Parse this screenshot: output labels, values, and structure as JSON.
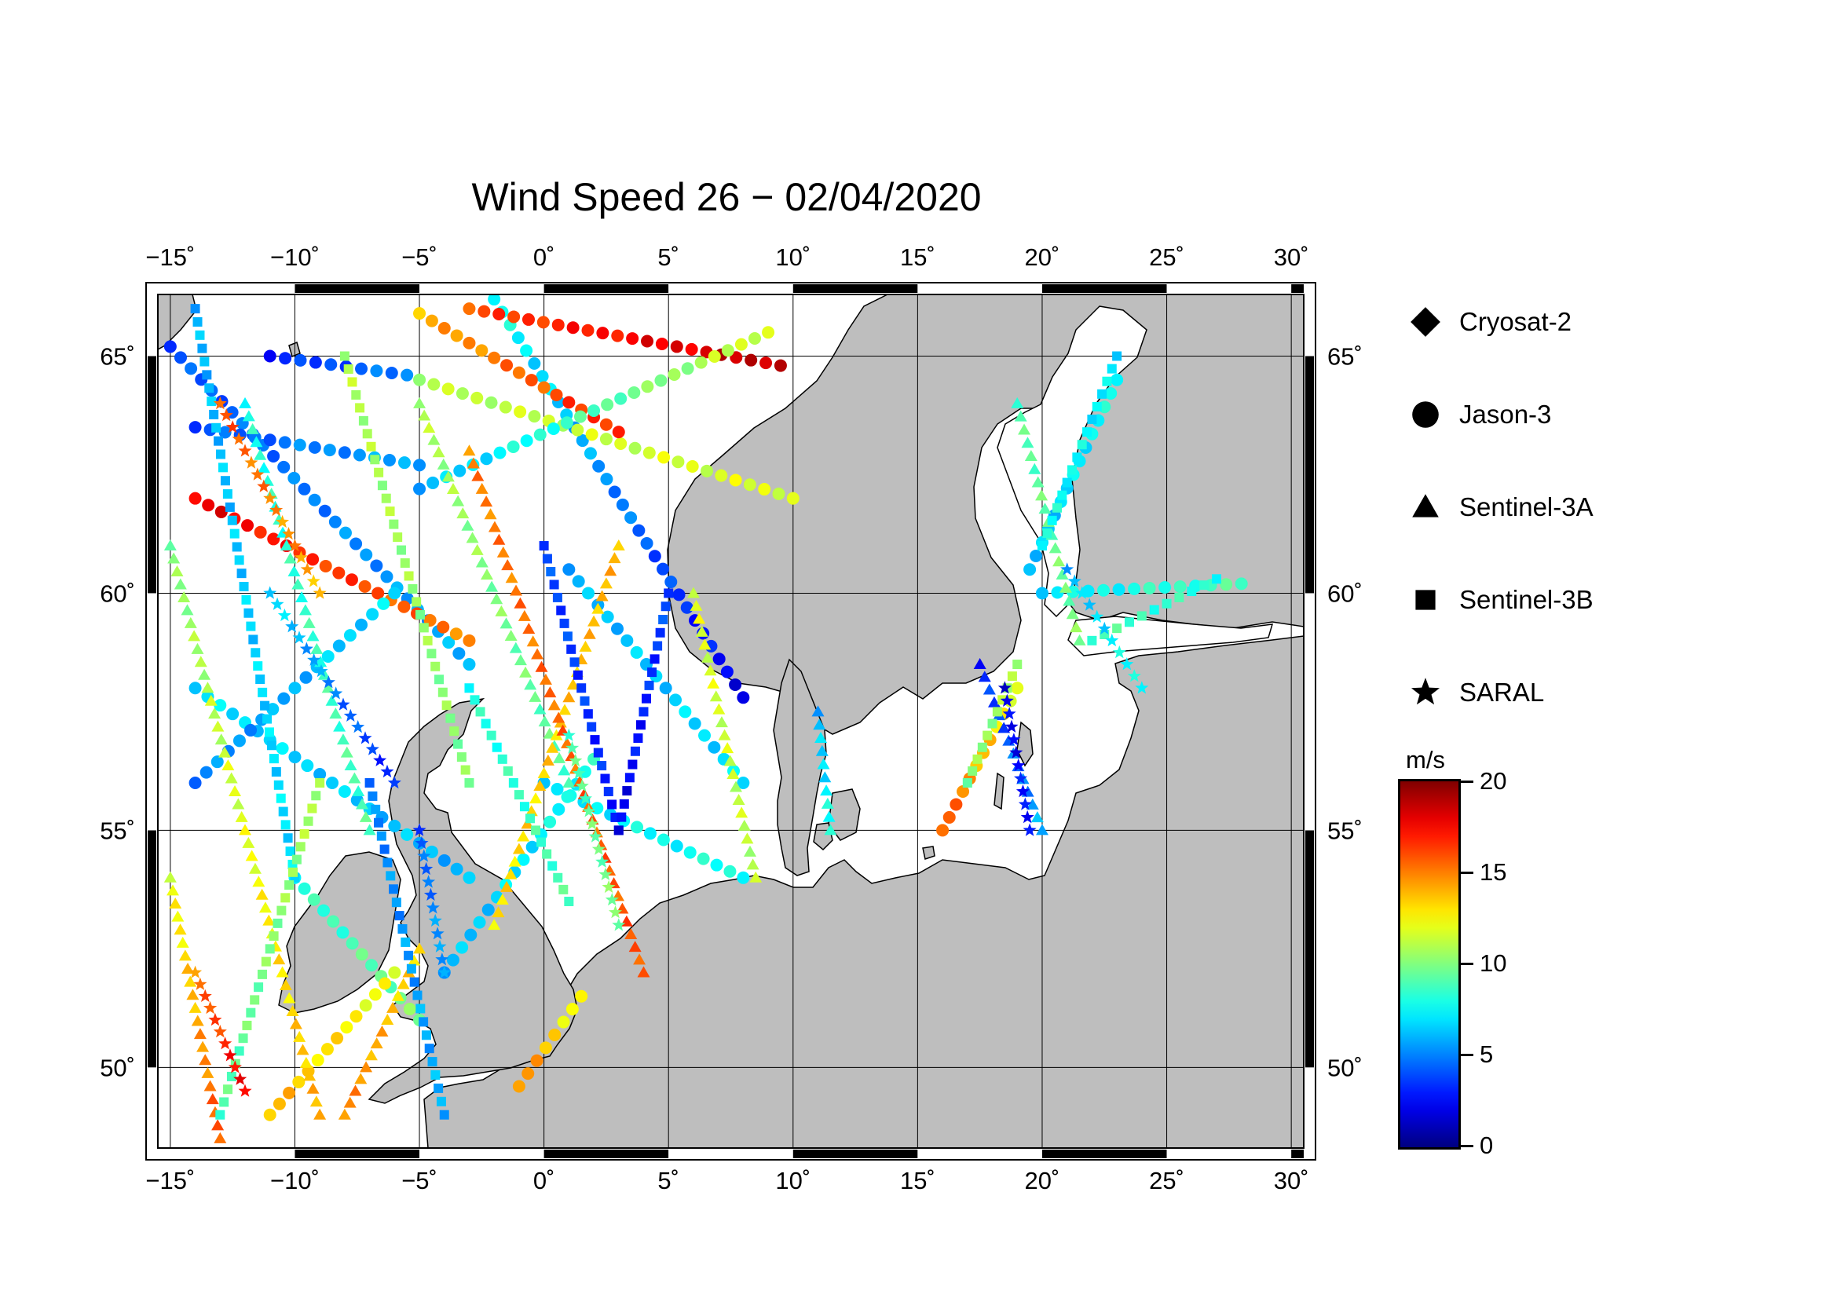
{
  "title": "Wind Speed 26 − 02/04/2020",
  "map": {
    "lon_range": [
      -15.5,
      30.5
    ],
    "lat_range": [
      48.3,
      66.3
    ],
    "lon_ticks": [
      -15,
      -10,
      -5,
      0,
      5,
      10,
      15,
      20,
      25,
      30
    ],
    "lon_tick_labels": [
      "−15˚",
      "−10˚",
      "−5˚",
      "0˚",
      "5˚",
      "10˚",
      "15˚",
      "20˚",
      "25˚",
      "30˚"
    ],
    "lat_ticks": [
      50,
      55,
      60,
      65
    ],
    "lat_tick_labels": [
      "50˚",
      "55˚",
      "60˚",
      "65˚"
    ],
    "land_color": "#bebebe",
    "sea_color": "#ffffff",
    "grid": true
  },
  "legend": {
    "items": [
      {
        "label": "Cryosat-2",
        "symbol": "diamond-icon"
      },
      {
        "label": "Jason-3",
        "symbol": "circle-icon"
      },
      {
        "label": "Sentinel-3A",
        "symbol": "triangle-icon"
      },
      {
        "label": "Sentinel-3B",
        "symbol": "square-icon"
      },
      {
        "label": "SARAL",
        "symbol": "star-icon"
      }
    ]
  },
  "colorbar": {
    "unit": "m/s",
    "min": 0,
    "max": 20,
    "ticks": [
      {
        "value": 20,
        "label": "20"
      },
      {
        "value": 15,
        "label": "15"
      },
      {
        "value": 10,
        "label": "10"
      },
      {
        "value": 5,
        "label": "5"
      },
      {
        "value": 0,
        "label": "0"
      }
    ],
    "colormap": "jet"
  },
  "tracks": [
    {
      "satellite": "Jason-3",
      "start": [
        -2,
        66.2
      ],
      "end": [
        8,
        57.8
      ],
      "speed_start": 8,
      "speed_end": 2
    },
    {
      "satellite": "Jason-3",
      "start": [
        -15,
        65.2
      ],
      "end": [
        -3,
        58.5
      ],
      "speed_start": 4,
      "speed_end": 6
    },
    {
      "satellite": "Jason-3",
      "start": [
        -14,
        62
      ],
      "end": [
        -3,
        59
      ],
      "speed_start": 18,
      "speed_end": 15
    },
    {
      "satellite": "Jason-3",
      "start": [
        -11,
        65
      ],
      "end": [
        -5.5,
        64.6
      ],
      "speed_start": 3,
      "speed_end": 5
    },
    {
      "satellite": "Jason-3",
      "start": [
        -14,
        63.5
      ],
      "end": [
        -5,
        62.7
      ],
      "speed_start": 4,
      "speed_end": 6
    },
    {
      "satellite": "Jason-3",
      "start": [
        -5,
        64.5
      ],
      "end": [
        10,
        62
      ],
      "speed_start": 11,
      "speed_end": 12
    },
    {
      "satellite": "Jason-3",
      "start": [
        -3,
        66
      ],
      "end": [
        9.5,
        64.8
      ],
      "speed_start": 16,
      "speed_end": 19
    },
    {
      "satellite": "Jason-3",
      "start": [
        -5,
        65.9
      ],
      "end": [
        3,
        63.4
      ],
      "speed_start": 14,
      "speed_end": 17
    },
    {
      "satellite": "Jason-3",
      "start": [
        -5,
        62.2
      ],
      "end": [
        9,
        65.5
      ],
      "speed_start": 6,
      "speed_end": 12
    },
    {
      "satellite": "Jason-3",
      "start": [
        -14,
        58
      ],
      "end": [
        -3,
        54
      ],
      "speed_start": 7,
      "speed_end": 6
    },
    {
      "satellite": "Jason-3",
      "start": [
        -14,
        56
      ],
      "end": [
        -6,
        60
      ],
      "speed_start": 5,
      "speed_end": 7
    },
    {
      "satellite": "Jason-3",
      "start": [
        0,
        56
      ],
      "end": [
        8,
        54
      ],
      "speed_start": 7,
      "speed_end": 8
    },
    {
      "satellite": "Jason-3",
      "start": [
        1,
        60.5
      ],
      "end": [
        8,
        56
      ],
      "speed_start": 6,
      "speed_end": 7
    },
    {
      "satellite": "Jason-3",
      "start": [
        -4,
        52
      ],
      "end": [
        2,
        56.5
      ],
      "speed_start": 6,
      "speed_end": 8
    },
    {
      "satellite": "Jason-3",
      "start": [
        -10,
        54
      ],
      "end": [
        -5,
        51
      ],
      "speed_start": 8,
      "speed_end": 10
    },
    {
      "satellite": "Jason-3",
      "start": [
        -11,
        49
      ],
      "end": [
        -6,
        52
      ],
      "speed_start": 14,
      "speed_end": 12
    },
    {
      "satellite": "Jason-3",
      "start": [
        20,
        60
      ],
      "end": [
        28,
        60.2
      ],
      "speed_start": 7,
      "speed_end": 9
    },
    {
      "satellite": "Jason-3",
      "start": [
        23,
        64.5
      ],
      "end": [
        19.5,
        60.5
      ],
      "speed_start": 8,
      "speed_end": 6
    },
    {
      "satellite": "Jason-3",
      "start": [
        16,
        55
      ],
      "end": [
        19,
        58
      ],
      "speed_start": 16,
      "speed_end": 12
    },
    {
      "satellite": "Jason-3",
      "start": [
        -1,
        49.6
      ],
      "end": [
        1.5,
        51.5
      ],
      "speed_start": 15,
      "speed_end": 12
    },
    {
      "satellite": "Sentinel-3A",
      "start": [
        -15,
        61
      ],
      "end": [
        -9,
        49
      ],
      "speed_start": 10,
      "speed_end": 14
    },
    {
      "satellite": "Sentinel-3A",
      "start": [
        -12,
        64
      ],
      "end": [
        -7,
        55
      ],
      "speed_start": 8,
      "speed_end": 9
    },
    {
      "satellite": "Sentinel-3A",
      "start": [
        -5,
        64
      ],
      "end": [
        1,
        56
      ],
      "speed_start": 11,
      "speed_end": 9
    },
    {
      "satellite": "Sentinel-3A",
      "start": [
        3,
        61
      ],
      "end": [
        -2,
        53
      ],
      "speed_start": 14,
      "speed_end": 13
    },
    {
      "satellite": "Sentinel-3A",
      "start": [
        -3,
        63
      ],
      "end": [
        4,
        52
      ],
      "speed_start": 15,
      "speed_end": 16
    },
    {
      "satellite": "Sentinel-3A",
      "start": [
        6,
        60
      ],
      "end": [
        8.5,
        54
      ],
      "speed_start": 12,
      "speed_end": 11
    },
    {
      "satellite": "Sentinel-3A",
      "start": [
        -15,
        54
      ],
      "end": [
        -13,
        48.5
      ],
      "speed_start": 12,
      "speed_end": 16
    },
    {
      "satellite": "Sentinel-3A",
      "start": [
        -8,
        49
      ],
      "end": [
        -5,
        52.5
      ],
      "speed_start": 15,
      "speed_end": 13
    },
    {
      "satellite": "Sentinel-3A",
      "start": [
        19,
        64
      ],
      "end": [
        21.5,
        59
      ],
      "speed_start": 9,
      "speed_end": 10
    },
    {
      "satellite": "Sentinel-3A",
      "start": [
        17.5,
        58.5
      ],
      "end": [
        20,
        55
      ],
      "speed_start": 3,
      "speed_end": 6
    },
    {
      "satellite": "Sentinel-3A",
      "start": [
        11,
        57.5
      ],
      "end": [
        11.5,
        55
      ],
      "speed_start": 6,
      "speed_end": 8
    },
    {
      "satellite": "Sentinel-3B",
      "start": [
        -14,
        66
      ],
      "end": [
        -10,
        54
      ],
      "speed_start": 6,
      "speed_end": 7
    },
    {
      "satellite": "Sentinel-3B",
      "start": [
        -8,
        65
      ],
      "end": [
        -3,
        56
      ],
      "speed_start": 11,
      "speed_end": 10
    },
    {
      "satellite": "Sentinel-3B",
      "start": [
        0,
        61
      ],
      "end": [
        3,
        55
      ],
      "speed_start": 4,
      "speed_end": 3
    },
    {
      "satellite": "Sentinel-3B",
      "start": [
        5,
        60
      ],
      "end": [
        3,
        55
      ],
      "speed_start": 4,
      "speed_end": 2
    },
    {
      "satellite": "Sentinel-3B",
      "start": [
        -7,
        56
      ],
      "end": [
        -4,
        49
      ],
      "speed_start": 5,
      "speed_end": 6
    },
    {
      "satellite": "Sentinel-3B",
      "start": [
        -13,
        49
      ],
      "end": [
        -9,
        56
      ],
      "speed_start": 9,
      "speed_end": 11
    },
    {
      "satellite": "Sentinel-3B",
      "start": [
        -3,
        58
      ],
      "end": [
        1,
        53.5
      ],
      "speed_start": 8,
      "speed_end": 9
    },
    {
      "satellite": "Sentinel-3B",
      "start": [
        23,
        65
      ],
      "end": [
        20,
        61
      ],
      "speed_start": 7,
      "speed_end": 8
    },
    {
      "satellite": "Sentinel-3B",
      "start": [
        22,
        59
      ],
      "end": [
        27,
        60.3
      ],
      "speed_start": 9,
      "speed_end": 8
    },
    {
      "satellite": "Sentinel-3B",
      "start": [
        17,
        56
      ],
      "end": [
        19,
        58.5
      ],
      "speed_start": 10,
      "speed_end": 11
    },
    {
      "satellite": "SARAL",
      "start": [
        -13,
        64
      ],
      "end": [
        -9,
        60
      ],
      "speed_start": 16,
      "speed_end": 14
    },
    {
      "satellite": "SARAL",
      "start": [
        -11,
        60
      ],
      "end": [
        -6,
        56
      ],
      "speed_start": 7,
      "speed_end": 3
    },
    {
      "satellite": "SARAL",
      "start": [
        -14,
        52
      ],
      "end": [
        -12,
        49.5
      ],
      "speed_start": 15,
      "speed_end": 18
    },
    {
      "satellite": "SARAL",
      "start": [
        -5,
        55
      ],
      "end": [
        -4,
        52
      ],
      "speed_start": 4,
      "speed_end": 6
    },
    {
      "satellite": "SARAL",
      "start": [
        1,
        57
      ],
      "end": [
        3,
        53
      ],
      "speed_start": 9,
      "speed_end": 10
    },
    {
      "satellite": "SARAL",
      "start": [
        18.5,
        58
      ],
      "end": [
        19.5,
        55
      ],
      "speed_start": 2,
      "speed_end": 3
    },
    {
      "satellite": "SARAL",
      "start": [
        21,
        60.5
      ],
      "end": [
        24,
        58
      ],
      "speed_start": 6,
      "speed_end": 8
    }
  ]
}
